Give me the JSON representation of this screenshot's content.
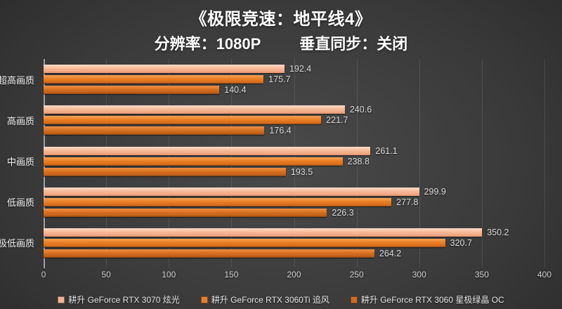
{
  "title": "《极限竞速：地平线4》",
  "subtitle_left": "分辨率：1080P",
  "subtitle_right": "垂直同步：关闭",
  "chart_data": {
    "type": "bar",
    "orientation": "horizontal",
    "title": "《极限竞速：地平线4》",
    "subtitle": "分辨率：1080P 垂直同步：关闭",
    "categories": [
      "超高画质",
      "高画质",
      "中画质",
      "低画质",
      "极低画质"
    ],
    "series": [
      {
        "name": "耕升 GeForce RTX 3070 炫光",
        "color": "#f2b294",
        "gradient": [
          "#fcdbc9",
          "#f6b896",
          "#efa57e",
          "#e09070"
        ],
        "values": [
          192.4,
          240.6,
          261.1,
          299.9,
          350.2
        ]
      },
      {
        "name": "耕升 GeForce RTX 3060Ti 追风",
        "color": "#e87e28",
        "gradient": [
          "#f8a155",
          "#e87c21",
          "#d66b1d",
          "#8d4a15"
        ],
        "values": [
          175.7,
          221.7,
          238.8,
          277.8,
          320.7
        ]
      },
      {
        "name": "耕升 GeForce RTX 3060 星极绿晶 OC",
        "color": "#cd6b24",
        "gradient": [
          "#ef8f43",
          "#d66f1f",
          "#bf5f1a",
          "#7b4113"
        ],
        "values": [
          140.4,
          176.4,
          193.5,
          226.3,
          264.2
        ]
      }
    ],
    "xlim": [
      0,
      400
    ],
    "x_ticks": [
      0,
      50,
      100,
      150,
      200,
      250,
      300,
      350,
      400
    ],
    "grid": true,
    "legend_position": "bottom",
    "value_labels": true,
    "background_color": "#3a3a3a",
    "text_color": "#ffffff"
  }
}
